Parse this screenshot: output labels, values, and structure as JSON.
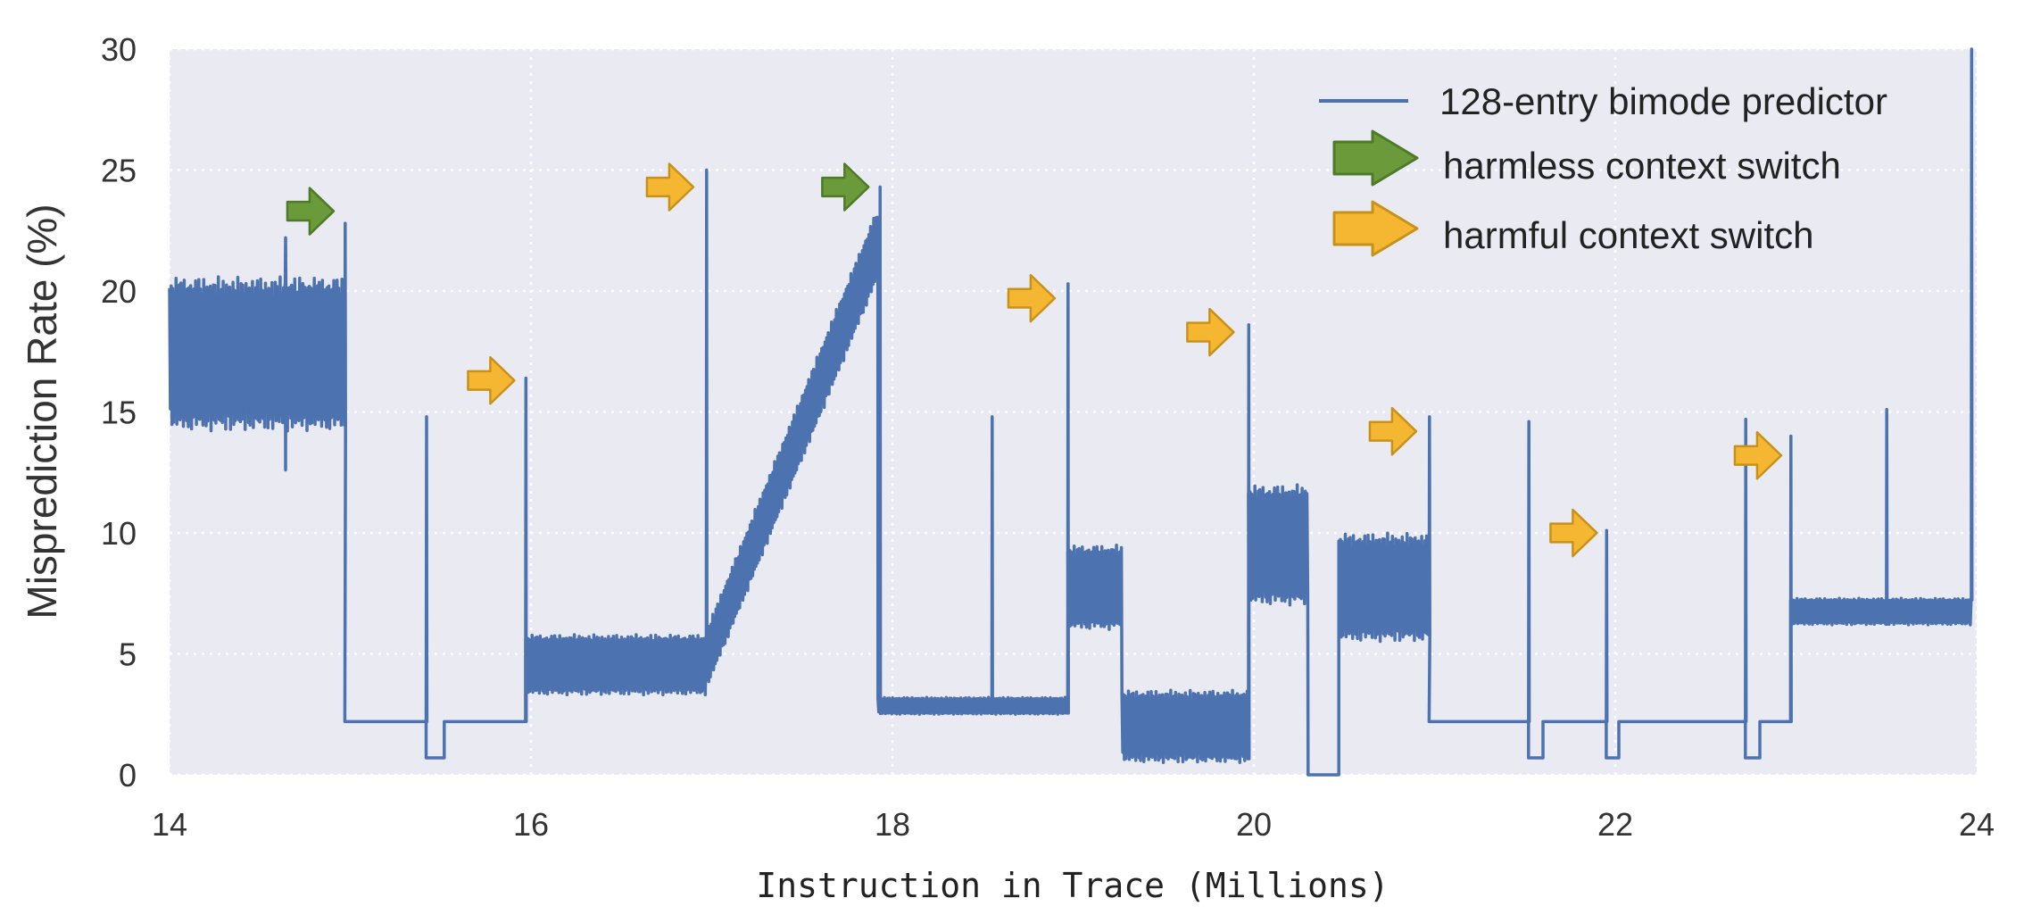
{
  "chart_data": {
    "type": "line",
    "xlabel": "Instruction in Trace (Millions)",
    "ylabel": "Misprediction Rate (%)",
    "xlim": [
      14,
      24
    ],
    "ylim": [
      0,
      30
    ],
    "x_ticks": [
      "14",
      "16",
      "18",
      "20",
      "22",
      "24"
    ],
    "y_ticks": [
      "0",
      "5",
      "10",
      "15",
      "20",
      "25",
      "30"
    ],
    "grid": true,
    "legend_placement": "top-right",
    "colors": {
      "background": "#eaeaf2",
      "grid": "#ffffff",
      "line": "#4c72b0",
      "harmless": "#6a9a3a",
      "harmless_edge": "#4f7a28",
      "harmful": "#f5b731",
      "harmful_edge": "#c8921a"
    },
    "legend": [
      {
        "label": "128-entry bimode predictor",
        "marker": "line"
      },
      {
        "label": "harmless context switch",
        "marker": "green-arrow"
      },
      {
        "label": "harmful context switch",
        "marker": "yellow-arrow"
      }
    ],
    "series": [
      {
        "name": "128-entry bimode predictor",
        "segments": [
          {
            "kind": "band",
            "x": [
              14.0,
              14.97
            ],
            "lo": 14.2,
            "hi": 20.6
          },
          {
            "kind": "flat",
            "x": [
              14.97,
              15.42
            ],
            "y": 2.2
          },
          {
            "kind": "flat",
            "x": [
              15.42,
              15.52
            ],
            "y": 0.7
          },
          {
            "kind": "flat",
            "x": [
              15.52,
              15.97
            ],
            "y": 2.2
          },
          {
            "kind": "band",
            "x": [
              15.97,
              16.97
            ],
            "lo": 3.3,
            "hi": 5.8
          },
          {
            "kind": "ramp",
            "x": [
              16.97,
              17.92
            ],
            "from": [
              3.5,
              6.0
            ],
            "to": [
              20.5,
              23.5
            ]
          },
          {
            "kind": "band",
            "x": [
              17.92,
              18.97
            ],
            "lo": 2.5,
            "hi": 3.2
          },
          {
            "kind": "band",
            "x": [
              18.97,
              19.27
            ],
            "lo": 6.0,
            "hi": 9.5
          },
          {
            "kind": "band",
            "x": [
              19.27,
              19.97
            ],
            "lo": 0.5,
            "hi": 3.5
          },
          {
            "kind": "band",
            "x": [
              19.97,
              20.3
            ],
            "lo": 7.0,
            "hi": 12.0
          },
          {
            "kind": "flat",
            "x": [
              20.3,
              20.47
            ],
            "y": 0.0
          },
          {
            "kind": "band",
            "x": [
              20.47,
              20.97
            ],
            "lo": 5.5,
            "hi": 10.0
          },
          {
            "kind": "flat",
            "x": [
              20.97,
              21.52
            ],
            "y": 2.2
          },
          {
            "kind": "flat",
            "x": [
              21.52,
              21.6
            ],
            "y": 0.7
          },
          {
            "kind": "flat",
            "x": [
              21.6,
              21.95
            ],
            "y": 2.2
          },
          {
            "kind": "flat",
            "x": [
              21.95,
              22.02
            ],
            "y": 0.7
          },
          {
            "kind": "flat",
            "x": [
              22.02,
              22.72
            ],
            "y": 2.2
          },
          {
            "kind": "flat",
            "x": [
              22.72,
              22.8
            ],
            "y": 0.7
          },
          {
            "kind": "flat",
            "x": [
              22.8,
              22.97
            ],
            "y": 2.2
          },
          {
            "kind": "band",
            "x": [
              22.97,
              23.97
            ],
            "lo": 6.2,
            "hi": 7.3
          }
        ],
        "spikes": [
          {
            "x": 14.64,
            "y": 22.2
          },
          {
            "x": 14.64,
            "y": 12.6
          },
          {
            "x": 14.97,
            "y": 22.8
          },
          {
            "x": 15.42,
            "y": 14.8
          },
          {
            "x": 15.97,
            "y": 16.4
          },
          {
            "x": 16.97,
            "y": 25.0
          },
          {
            "x": 17.93,
            "y": 24.3
          },
          {
            "x": 18.55,
            "y": 14.8
          },
          {
            "x": 18.97,
            "y": 20.3
          },
          {
            "x": 19.97,
            "y": 18.6
          },
          {
            "x": 20.97,
            "y": 14.8
          },
          {
            "x": 21.52,
            "y": 14.6
          },
          {
            "x": 21.95,
            "y": 10.1
          },
          {
            "x": 22.72,
            "y": 14.7
          },
          {
            "x": 22.97,
            "y": 14.0
          },
          {
            "x": 23.5,
            "y": 15.1
          },
          {
            "x": 23.97,
            "y": 30.0
          }
        ]
      }
    ],
    "annotations": [
      {
        "type": "harmless",
        "x": 14.78,
        "y": 23.3
      },
      {
        "type": "harmful",
        "x": 15.78,
        "y": 16.3
      },
      {
        "type": "harmful",
        "x": 16.77,
        "y": 24.3
      },
      {
        "type": "harmless",
        "x": 17.74,
        "y": 24.3
      },
      {
        "type": "harmful",
        "x": 18.77,
        "y": 19.7
      },
      {
        "type": "harmful",
        "x": 19.76,
        "y": 18.3
      },
      {
        "type": "harmful",
        "x": 20.77,
        "y": 14.2
      },
      {
        "type": "harmful",
        "x": 21.77,
        "y": 10.0
      },
      {
        "type": "harmful",
        "x": 22.79,
        "y": 13.2
      }
    ]
  }
}
